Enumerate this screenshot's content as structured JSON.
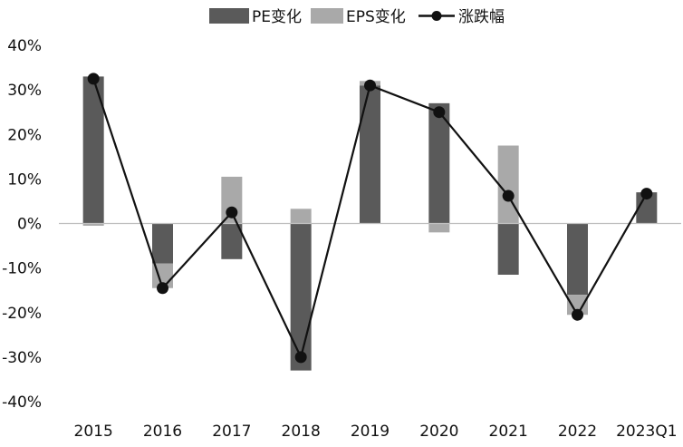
{
  "chart_data": {
    "type": "bar",
    "categories": [
      "2015",
      "2016",
      "2017",
      "2018",
      "2019",
      "2020",
      "2021",
      "2022",
      "2023Q1"
    ],
    "series": [
      {
        "name": "PE变化",
        "kind": "bar",
        "color": "#5a5a5a",
        "values": [
          33,
          -9,
          -8,
          -33,
          31,
          27,
          -11.5,
          -16,
          7
        ]
      },
      {
        "name": "EPS变化",
        "kind": "bar",
        "color": "#a9a9a9",
        "values": [
          -0.5,
          -5.5,
          10.5,
          3.3,
          1,
          -2,
          17.5,
          -4.5,
          0
        ]
      },
      {
        "name": "涨跌幅",
        "kind": "line",
        "color": "#111111",
        "values": [
          32.5,
          -14.5,
          2.5,
          -30,
          31,
          25,
          6.2,
          -20.5,
          6.7
        ]
      }
    ],
    "ylim": [
      -40,
      40
    ],
    "yticks": [
      {
        "value": 40,
        "label": "40%"
      },
      {
        "value": 30,
        "label": "30%"
      },
      {
        "value": 20,
        "label": "20%"
      },
      {
        "value": 10,
        "label": "10%"
      },
      {
        "value": 0,
        "label": "0%"
      },
      {
        "value": -10,
        "label": "-10%"
      },
      {
        "value": -20,
        "label": "-20%"
      },
      {
        "value": -30,
        "label": "-30%"
      },
      {
        "value": -40,
        "label": "-40%"
      }
    ],
    "stacked": true,
    "grid": false,
    "legend_position": "top"
  }
}
